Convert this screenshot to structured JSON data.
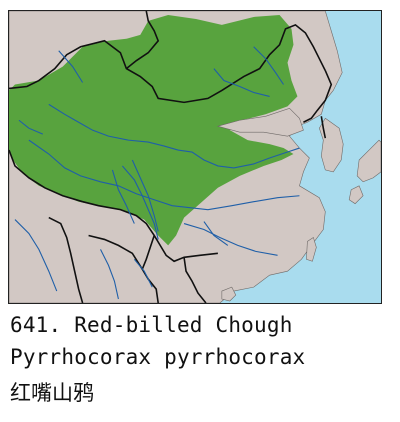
{
  "caption": {
    "number_and_common_name": "641. Red-billed Chough",
    "scientific_name": "Pyrrhocorax pyrrhocorax",
    "chinese_name": "红嘴山鸦"
  },
  "colors": {
    "sea": "#a9dcee",
    "land": "#d2c8c4",
    "range": "#58a33e",
    "rivers": "#1f5fa8",
    "borders": "#111111"
  }
}
